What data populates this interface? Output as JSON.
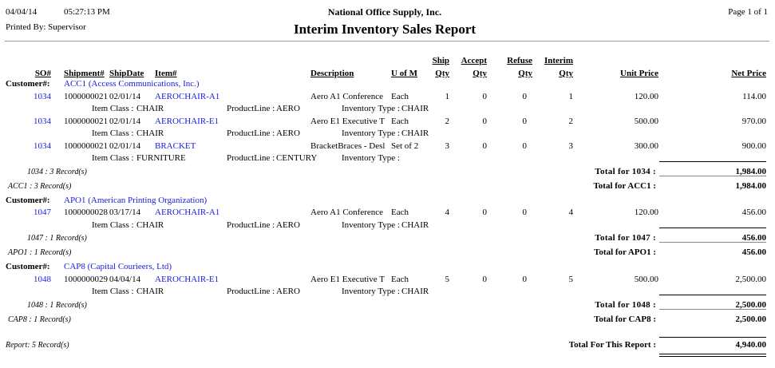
{
  "header": {
    "date": "04/04/14",
    "time": "05:27:13 PM",
    "company": "National Office Supply, Inc.",
    "page": "Page 1 of  1",
    "printed_by": "Printed By: Supervisor",
    "title": "Interim Inventory Sales Report"
  },
  "columns": {
    "so": "SO#",
    "shipment": "Shipment#",
    "ship_date": "ShipDate",
    "item": "Item#",
    "description": "Description",
    "uofm": "U of M",
    "ship_qty": [
      "Ship",
      "Qty"
    ],
    "accept_qty": [
      "Accept",
      "Qty"
    ],
    "refuse_qty": [
      "Refuse",
      "Qty"
    ],
    "interim_qty": [
      "Interim",
      "Qty"
    ],
    "unit_price": "Unit Price",
    "net_price": "Net Price"
  },
  "labels": {
    "customer": "Customer#:",
    "item_class": "Item Class : ",
    "product_line": "ProductLine : ",
    "inventory_type": "Inventory Type : "
  },
  "customers": [
    {
      "name": "ACC1 (Access Communications, Inc.)",
      "orders": [
        {
          "lines": [
            {
              "so": "1034",
              "shipment": "1000000021",
              "date": "02/01/14",
              "item": "AEROCHAIR-A1",
              "description": "Aero A1 Conference",
              "uofm": "Each",
              "ship": "1",
              "accept": "0",
              "refuse": "0",
              "interim": "1",
              "unit": "120.00",
              "net": "114.00",
              "item_class": "CHAIR",
              "product_line": "AERO",
              "inventory_type": "CHAIR"
            },
            {
              "so": "1034",
              "shipment": "1000000021",
              "date": "02/01/14",
              "item": "AEROCHAIR-E1",
              "description": "Aero E1 Executive T",
              "uofm": "Each",
              "ship": "2",
              "accept": "0",
              "refuse": "0",
              "interim": "2",
              "unit": "500.00",
              "net": "970.00",
              "item_class": "CHAIR",
              "product_line": "AERO",
              "inventory_type": "CHAIR"
            },
            {
              "so": "1034",
              "shipment": "1000000021",
              "date": "02/01/14",
              "item": "BRACKET",
              "description": "BracketBraces - Desl",
              "uofm": "Set of 2",
              "ship": "3",
              "accept": "0",
              "refuse": "0",
              "interim": "3",
              "unit": "300.00",
              "net": "900.00",
              "item_class": "FURNITURE",
              "product_line": "CENTURY",
              "inventory_type": ""
            }
          ],
          "records": "1034 : 3 Record(s)",
          "total_label": "Total for    1034 :",
          "total": "1,984.00"
        }
      ],
      "records": "ACC1 : 3 Record(s)",
      "total_label": "Total for ACC1 :",
      "total": "1,984.00"
    },
    {
      "name": "APO1 (American Printing Organization)",
      "orders": [
        {
          "lines": [
            {
              "so": "1047",
              "shipment": "1000000028",
              "date": "03/17/14",
              "item": "AEROCHAIR-A1",
              "description": "Aero A1 Conference",
              "uofm": "Each",
              "ship": "4",
              "accept": "0",
              "refuse": "0",
              "interim": "4",
              "unit": "120.00",
              "net": "456.00",
              "item_class": "CHAIR",
              "product_line": "AERO",
              "inventory_type": "CHAIR"
            }
          ],
          "records": "1047 : 1 Record(s)",
          "total_label": "Total for    1047 :",
          "total": "456.00"
        }
      ],
      "records": "APO1 : 1 Record(s)",
      "total_label": "Total for APO1 :",
      "total": "456.00"
    },
    {
      "name": "CAP8 (Capital Courieers, Ltd)",
      "orders": [
        {
          "lines": [
            {
              "so": "1048",
              "shipment": "1000000029",
              "date": "04/04/14",
              "item": "AEROCHAIR-E1",
              "description": "Aero E1 Executive T",
              "uofm": "Each",
              "ship": "5",
              "accept": "0",
              "refuse": "0",
              "interim": "5",
              "unit": "500.00",
              "net": "2,500.00",
              "item_class": "CHAIR",
              "product_line": "AERO",
              "inventory_type": "CHAIR"
            }
          ],
          "records": "1048 : 1 Record(s)",
          "total_label": "Total for    1048 :",
          "total": "2,500.00"
        }
      ],
      "records": "CAP8 : 1 Record(s)",
      "total_label": "Total for CAP8 :",
      "total": "2,500.00"
    }
  ],
  "report": {
    "records": "Report: 5 Record(s)",
    "total_label": "Total For This Report :",
    "total": "4,940.00"
  }
}
